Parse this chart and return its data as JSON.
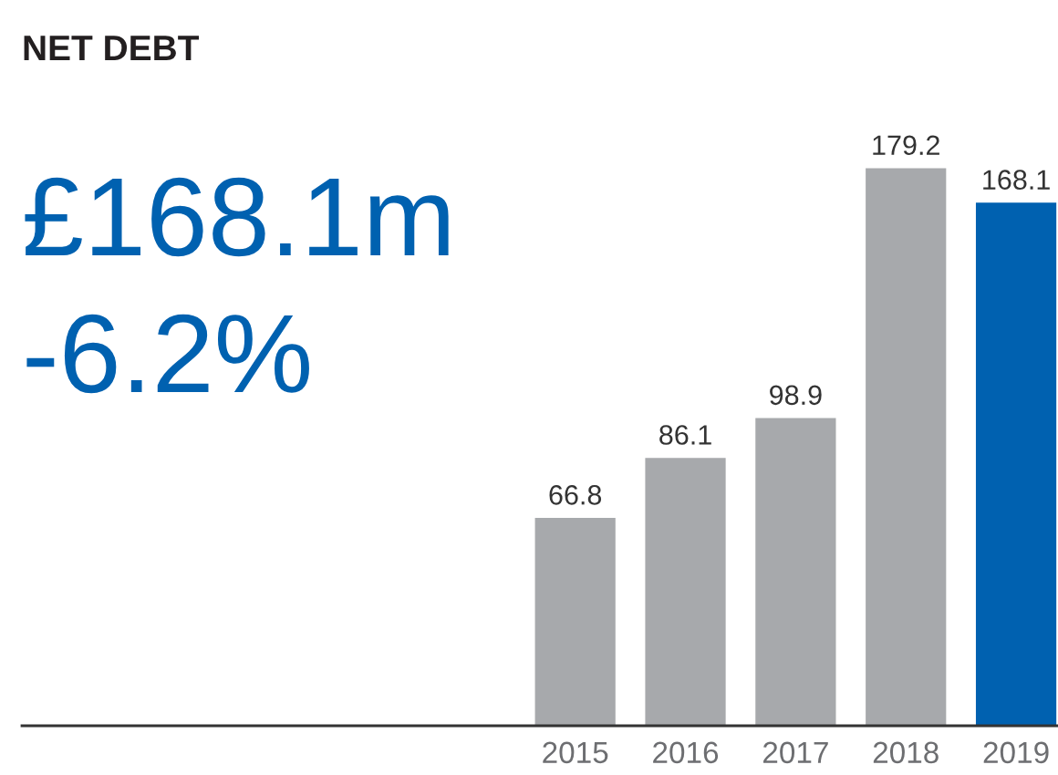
{
  "chart_data": {
    "type": "bar",
    "title": "NET DEBT",
    "annotations": [
      "£168.1m",
      "-6.2%"
    ],
    "categories": [
      "2015",
      "2016",
      "2017",
      "2018",
      "2019"
    ],
    "values": [
      66.8,
      86.1,
      98.9,
      179.2,
      168.1
    ],
    "colors": [
      "#a7a9ac",
      "#a7a9ac",
      "#a7a9ac",
      "#a7a9ac",
      "#0061b0"
    ],
    "data_labels": true,
    "grid": false,
    "legend": false
  }
}
